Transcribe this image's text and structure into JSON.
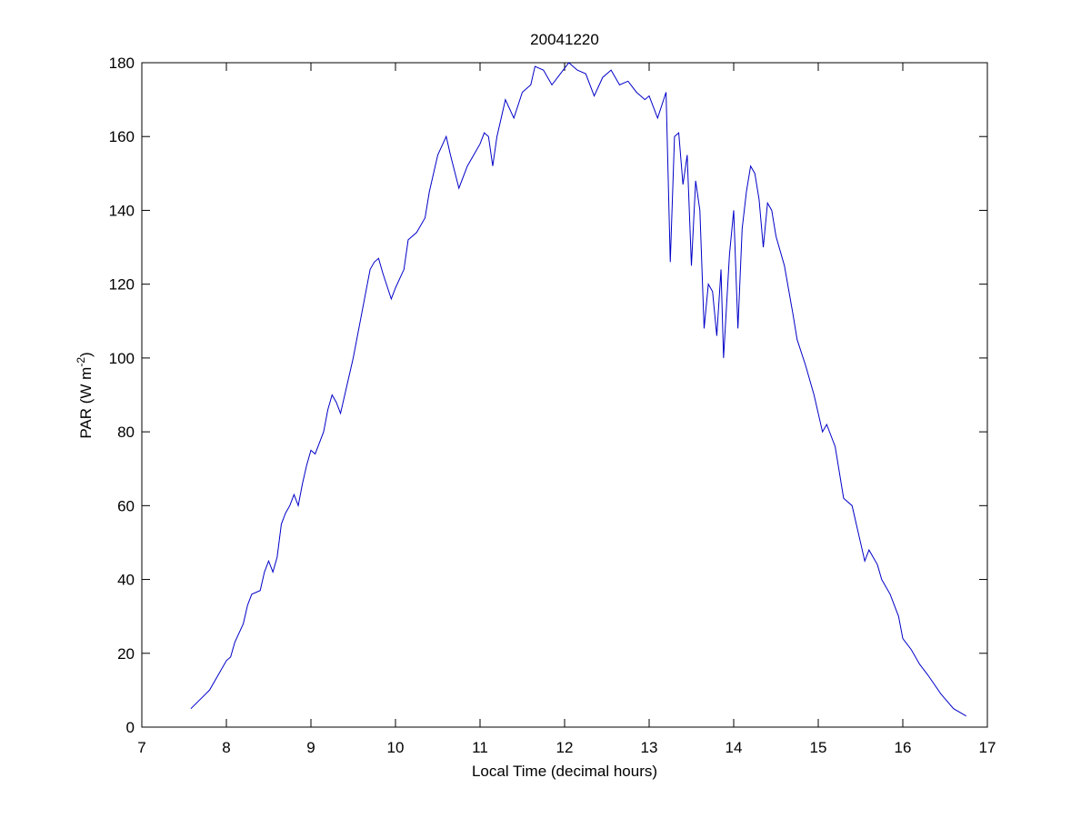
{
  "chart_data": {
    "type": "line",
    "title": "20041220",
    "xlabel": "Local Time (decimal hours)",
    "ylabel": [
      "PAR (W m",
      "-2",
      ")"
    ],
    "xlim": [
      7,
      17
    ],
    "xticks": [
      7,
      8,
      9,
      10,
      11,
      12,
      13,
      14,
      15,
      16,
      17
    ],
    "ylim": [
      0,
      180
    ],
    "yticks": [
      0,
      20,
      40,
      60,
      80,
      100,
      120,
      140,
      160,
      180
    ],
    "grid": false,
    "series": [
      {
        "color": "#0000c8",
        "x": [
          7.58,
          7.8,
          8.0,
          8.05,
          8.1,
          8.2,
          8.25,
          8.3,
          8.4,
          8.45,
          8.5,
          8.55,
          8.6,
          8.65,
          8.7,
          8.75,
          8.8,
          8.85,
          8.9,
          8.95,
          9.0,
          9.05,
          9.1,
          9.15,
          9.2,
          9.25,
          9.3,
          9.35,
          9.4,
          9.5,
          9.6,
          9.7,
          9.75,
          9.8,
          9.85,
          9.95,
          10.0,
          10.1,
          10.15,
          10.25,
          10.35,
          10.4,
          10.5,
          10.6,
          10.65,
          10.75,
          10.85,
          10.95,
          11.0,
          11.05,
          11.1,
          11.15,
          11.2,
          11.3,
          11.4,
          11.5,
          11.6,
          11.65,
          11.75,
          11.85,
          11.95,
          12.05,
          12.15,
          12.25,
          12.35,
          12.45,
          12.55,
          12.65,
          12.75,
          12.85,
          12.95,
          13.0,
          13.05,
          13.1,
          13.2,
          13.25,
          13.3,
          13.35,
          13.4,
          13.45,
          13.5,
          13.55,
          13.6,
          13.65,
          13.7,
          13.75,
          13.8,
          13.85,
          13.88,
          13.95,
          14.0,
          14.05,
          14.1,
          14.15,
          14.2,
          14.25,
          14.3,
          14.35,
          14.4,
          14.45,
          14.5,
          14.6,
          14.7,
          14.75,
          14.85,
          14.95,
          15.0,
          15.05,
          15.1,
          15.2,
          15.3,
          15.4,
          15.5,
          15.55,
          15.6,
          15.7,
          15.75,
          15.85,
          15.95,
          16.0,
          16.1,
          16.2,
          16.3,
          16.45,
          16.6,
          16.75
        ],
        "values": [
          5,
          10,
          18,
          19,
          23,
          28,
          33,
          36,
          37,
          42,
          45,
          42,
          46,
          55,
          58,
          60,
          63,
          60,
          66,
          71,
          75,
          74,
          77,
          80,
          86,
          90,
          88,
          85,
          90,
          100,
          112,
          124,
          126,
          127,
          123,
          116,
          119,
          124,
          132,
          134,
          138,
          145,
          155,
          160,
          155,
          146,
          152,
          156,
          158,
          161,
          160,
          152,
          160,
          170,
          165,
          172,
          174,
          179,
          178,
          174,
          177,
          180,
          178,
          177,
          171,
          176,
          178,
          174,
          175,
          172,
          170,
          171,
          168,
          165,
          172,
          126,
          160,
          161,
          147,
          155,
          125,
          148,
          140,
          108,
          120,
          118,
          106,
          124,
          100,
          128,
          140,
          108,
          135,
          145,
          152,
          150,
          143,
          130,
          142,
          140,
          133,
          125,
          112,
          105,
          98,
          90,
          85,
          80,
          82,
          76,
          62,
          60,
          50,
          45,
          48,
          44,
          40,
          36,
          30,
          24,
          21,
          17,
          14,
          9,
          5,
          3
        ]
      }
    ]
  }
}
